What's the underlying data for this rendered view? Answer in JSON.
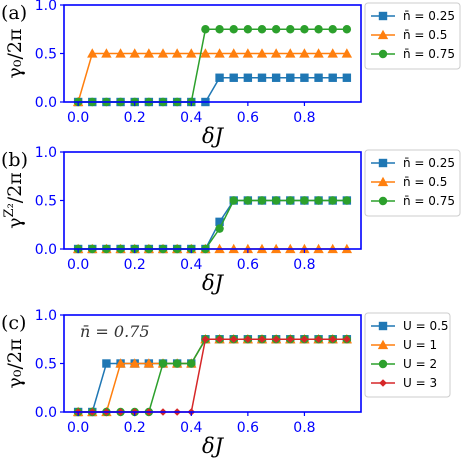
{
  "colors": {
    "blue": "#1f77b4",
    "orange": "#ff7f0e",
    "green": "#2ca02c",
    "red": "#d62728",
    "tick": "#0000ff",
    "axis": "#0000ff"
  },
  "chart_data": [
    {
      "type": "line",
      "panel_label": "(a)",
      "ylabel": "γ₀/2π",
      "xlabel": "δJ",
      "xlim": [
        -0.05,
        1.0
      ],
      "ylim": [
        0.0,
        1.0
      ],
      "xticks": [
        "0.0",
        "0.2",
        "0.4",
        "0.6",
        "0.8"
      ],
      "yticks": [
        "0.0",
        "0.5",
        "1.0"
      ],
      "x": [
        0.0,
        0.05,
        0.1,
        0.15,
        0.2,
        0.25,
        0.3,
        0.35,
        0.4,
        0.45,
        0.5,
        0.55,
        0.6,
        0.65,
        0.7,
        0.75,
        0.8,
        0.85,
        0.9,
        0.95
      ],
      "legend_position": "right",
      "series": [
        {
          "name": "n̄ = 0.25",
          "marker": "square",
          "color": "#1f77b4",
          "values": [
            0,
            0,
            0,
            0,
            0,
            0,
            0,
            0,
            0,
            0,
            0.25,
            0.25,
            0.25,
            0.25,
            0.25,
            0.25,
            0.25,
            0.25,
            0.25,
            0.25
          ]
        },
        {
          "name": "n̄ = 0.5",
          "marker": "triangle",
          "color": "#ff7f0e",
          "values": [
            0,
            0.5,
            0.5,
            0.5,
            0.5,
            0.5,
            0.5,
            0.5,
            0.5,
            0.5,
            0.5,
            0.5,
            0.5,
            0.5,
            0.5,
            0.5,
            0.5,
            0.5,
            0.5,
            0.5
          ]
        },
        {
          "name": "n̄ = 0.75",
          "marker": "circle",
          "color": "#2ca02c",
          "values": [
            0,
            0,
            0,
            0,
            0,
            0,
            0,
            0,
            0,
            0.75,
            0.75,
            0.75,
            0.75,
            0.75,
            0.75,
            0.75,
            0.75,
            0.75,
            0.75,
            0.75
          ]
        }
      ]
    },
    {
      "type": "line",
      "panel_label": "(b)",
      "ylabel_base": "γ",
      "ylabel_sup": "Z₂",
      "ylabel_tail": "/2π",
      "xlabel": "δJ",
      "xlim": [
        -0.05,
        1.0
      ],
      "ylim": [
        0.0,
        1.0
      ],
      "xticks": [
        "0.0",
        "0.2",
        "0.4",
        "0.6",
        "0.8"
      ],
      "yticks": [
        "0.0",
        "0.5",
        "1.0"
      ],
      "x": [
        0.0,
        0.05,
        0.1,
        0.15,
        0.2,
        0.25,
        0.3,
        0.35,
        0.4,
        0.45,
        0.5,
        0.55,
        0.6,
        0.65,
        0.7,
        0.75,
        0.8,
        0.85,
        0.9,
        0.95
      ],
      "legend_position": "right",
      "series": [
        {
          "name": "n̄ = 0.25",
          "marker": "square",
          "color": "#1f77b4",
          "values": [
            0,
            0,
            0,
            0,
            0,
            0,
            0,
            0,
            0,
            0,
            0.28,
            0.5,
            0.5,
            0.5,
            0.5,
            0.5,
            0.5,
            0.5,
            0.5,
            0.5
          ]
        },
        {
          "name": "n̄ = 0.5",
          "marker": "triangle",
          "color": "#ff7f0e",
          "values": [
            0,
            0,
            0,
            0,
            0,
            0,
            0,
            0,
            0,
            0,
            0,
            0,
            0,
            0,
            0,
            0,
            0,
            0,
            0,
            0
          ]
        },
        {
          "name": "n̄ = 0.75",
          "marker": "circle",
          "color": "#2ca02c",
          "values": [
            0,
            0,
            0,
            0,
            0,
            0,
            0,
            0,
            0,
            0,
            0.21,
            0.5,
            0.5,
            0.5,
            0.5,
            0.5,
            0.5,
            0.5,
            0.5,
            0.5
          ]
        }
      ]
    },
    {
      "type": "line",
      "panel_label": "(c)",
      "annotation": "n̄ = 0.75",
      "ylabel": "γ₀/2π",
      "xlabel": "δJ",
      "xlim": [
        -0.05,
        1.0
      ],
      "ylim": [
        0.0,
        1.0
      ],
      "xticks": [
        "0.0",
        "0.2",
        "0.4",
        "0.6",
        "0.8"
      ],
      "yticks": [
        "0.0",
        "0.5",
        "1.0"
      ],
      "x": [
        0.0,
        0.05,
        0.1,
        0.15,
        0.2,
        0.25,
        0.3,
        0.35,
        0.4,
        0.45,
        0.5,
        0.55,
        0.6,
        0.65,
        0.7,
        0.75,
        0.8,
        0.85,
        0.9,
        0.95
      ],
      "legend_position": "right",
      "series": [
        {
          "name": "U = 0.5",
          "marker": "square",
          "color": "#1f77b4",
          "values": [
            0,
            0,
            0.5,
            0.5,
            0.5,
            0.5,
            0.5,
            0.5,
            0.5,
            0.75,
            0.75,
            0.75,
            0.75,
            0.75,
            0.75,
            0.75,
            0.75,
            0.75,
            0.75,
            0.75
          ]
        },
        {
          "name": "U = 1",
          "marker": "triangle",
          "color": "#ff7f0e",
          "values": [
            0,
            0,
            0,
            0.5,
            0.5,
            0.5,
            0.5,
            0.5,
            0.5,
            0.75,
            0.75,
            0.75,
            0.75,
            0.75,
            0.75,
            0.75,
            0.75,
            0.75,
            0.75,
            0.75
          ]
        },
        {
          "name": "U = 2",
          "marker": "circle",
          "color": "#2ca02c",
          "values": [
            0,
            0,
            0,
            0,
            0,
            0,
            0.5,
            0.5,
            0.5,
            0.75,
            0.75,
            0.75,
            0.75,
            0.75,
            0.75,
            0.75,
            0.75,
            0.75,
            0.75,
            0.75
          ]
        },
        {
          "name": "U = 3",
          "marker": "diamond",
          "color": "#d62728",
          "values": [
            0,
            0,
            0,
            0,
            0,
            0,
            0,
            0,
            0,
            0.75,
            0.75,
            0.75,
            0.75,
            0.75,
            0.75,
            0.75,
            0.75,
            0.75,
            0.75,
            0.75
          ]
        }
      ]
    }
  ]
}
